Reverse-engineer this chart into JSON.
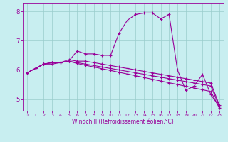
{
  "xlabel": "Windchill (Refroidissement éolien,°C)",
  "ylabel": "",
  "bg_color": "#c8eef0",
  "line_color": "#990099",
  "grid_color": "#99cccc",
  "x": [
    0,
    1,
    2,
    3,
    4,
    5,
    6,
    7,
    8,
    9,
    10,
    11,
    12,
    13,
    14,
    15,
    16,
    17,
    18,
    19,
    20,
    21,
    22,
    23
  ],
  "series": {
    "line1": [
      5.9,
      6.05,
      6.2,
      6.2,
      6.25,
      6.3,
      6.65,
      6.55,
      6.55,
      6.5,
      6.5,
      7.25,
      7.7,
      7.9,
      7.95,
      7.95,
      7.75,
      7.9,
      6.0,
      5.3,
      5.45,
      5.85,
      5.15,
      4.75
    ],
    "line2": [
      5.9,
      6.05,
      6.2,
      6.25,
      6.25,
      6.35,
      6.3,
      6.3,
      6.25,
      6.2,
      6.15,
      6.1,
      6.05,
      6.0,
      5.95,
      5.9,
      5.85,
      5.8,
      5.75,
      5.7,
      5.65,
      5.6,
      5.55,
      4.8
    ],
    "line3": [
      5.9,
      6.05,
      6.2,
      6.25,
      6.25,
      6.3,
      6.25,
      6.2,
      6.15,
      6.1,
      6.05,
      6.0,
      5.95,
      5.9,
      5.85,
      5.8,
      5.75,
      5.7,
      5.65,
      5.6,
      5.55,
      5.5,
      5.45,
      4.75
    ],
    "line4": [
      5.9,
      6.05,
      6.2,
      6.25,
      6.25,
      6.3,
      6.22,
      6.16,
      6.1,
      6.04,
      5.98,
      5.92,
      5.86,
      5.8,
      5.74,
      5.68,
      5.62,
      5.56,
      5.5,
      5.44,
      5.38,
      5.32,
      5.26,
      4.7
    ]
  },
  "ylim": [
    4.6,
    8.3
  ],
  "xlim": [
    -0.5,
    23.5
  ],
  "yticks": [
    5,
    6,
    7,
    8
  ],
  "xticks": [
    0,
    1,
    2,
    3,
    4,
    5,
    6,
    7,
    8,
    9,
    10,
    11,
    12,
    13,
    14,
    15,
    16,
    17,
    18,
    19,
    20,
    21,
    22,
    23
  ],
  "tick_fontsize_x": 4.5,
  "tick_fontsize_y": 6.0,
  "xlabel_fontsize": 5.5
}
